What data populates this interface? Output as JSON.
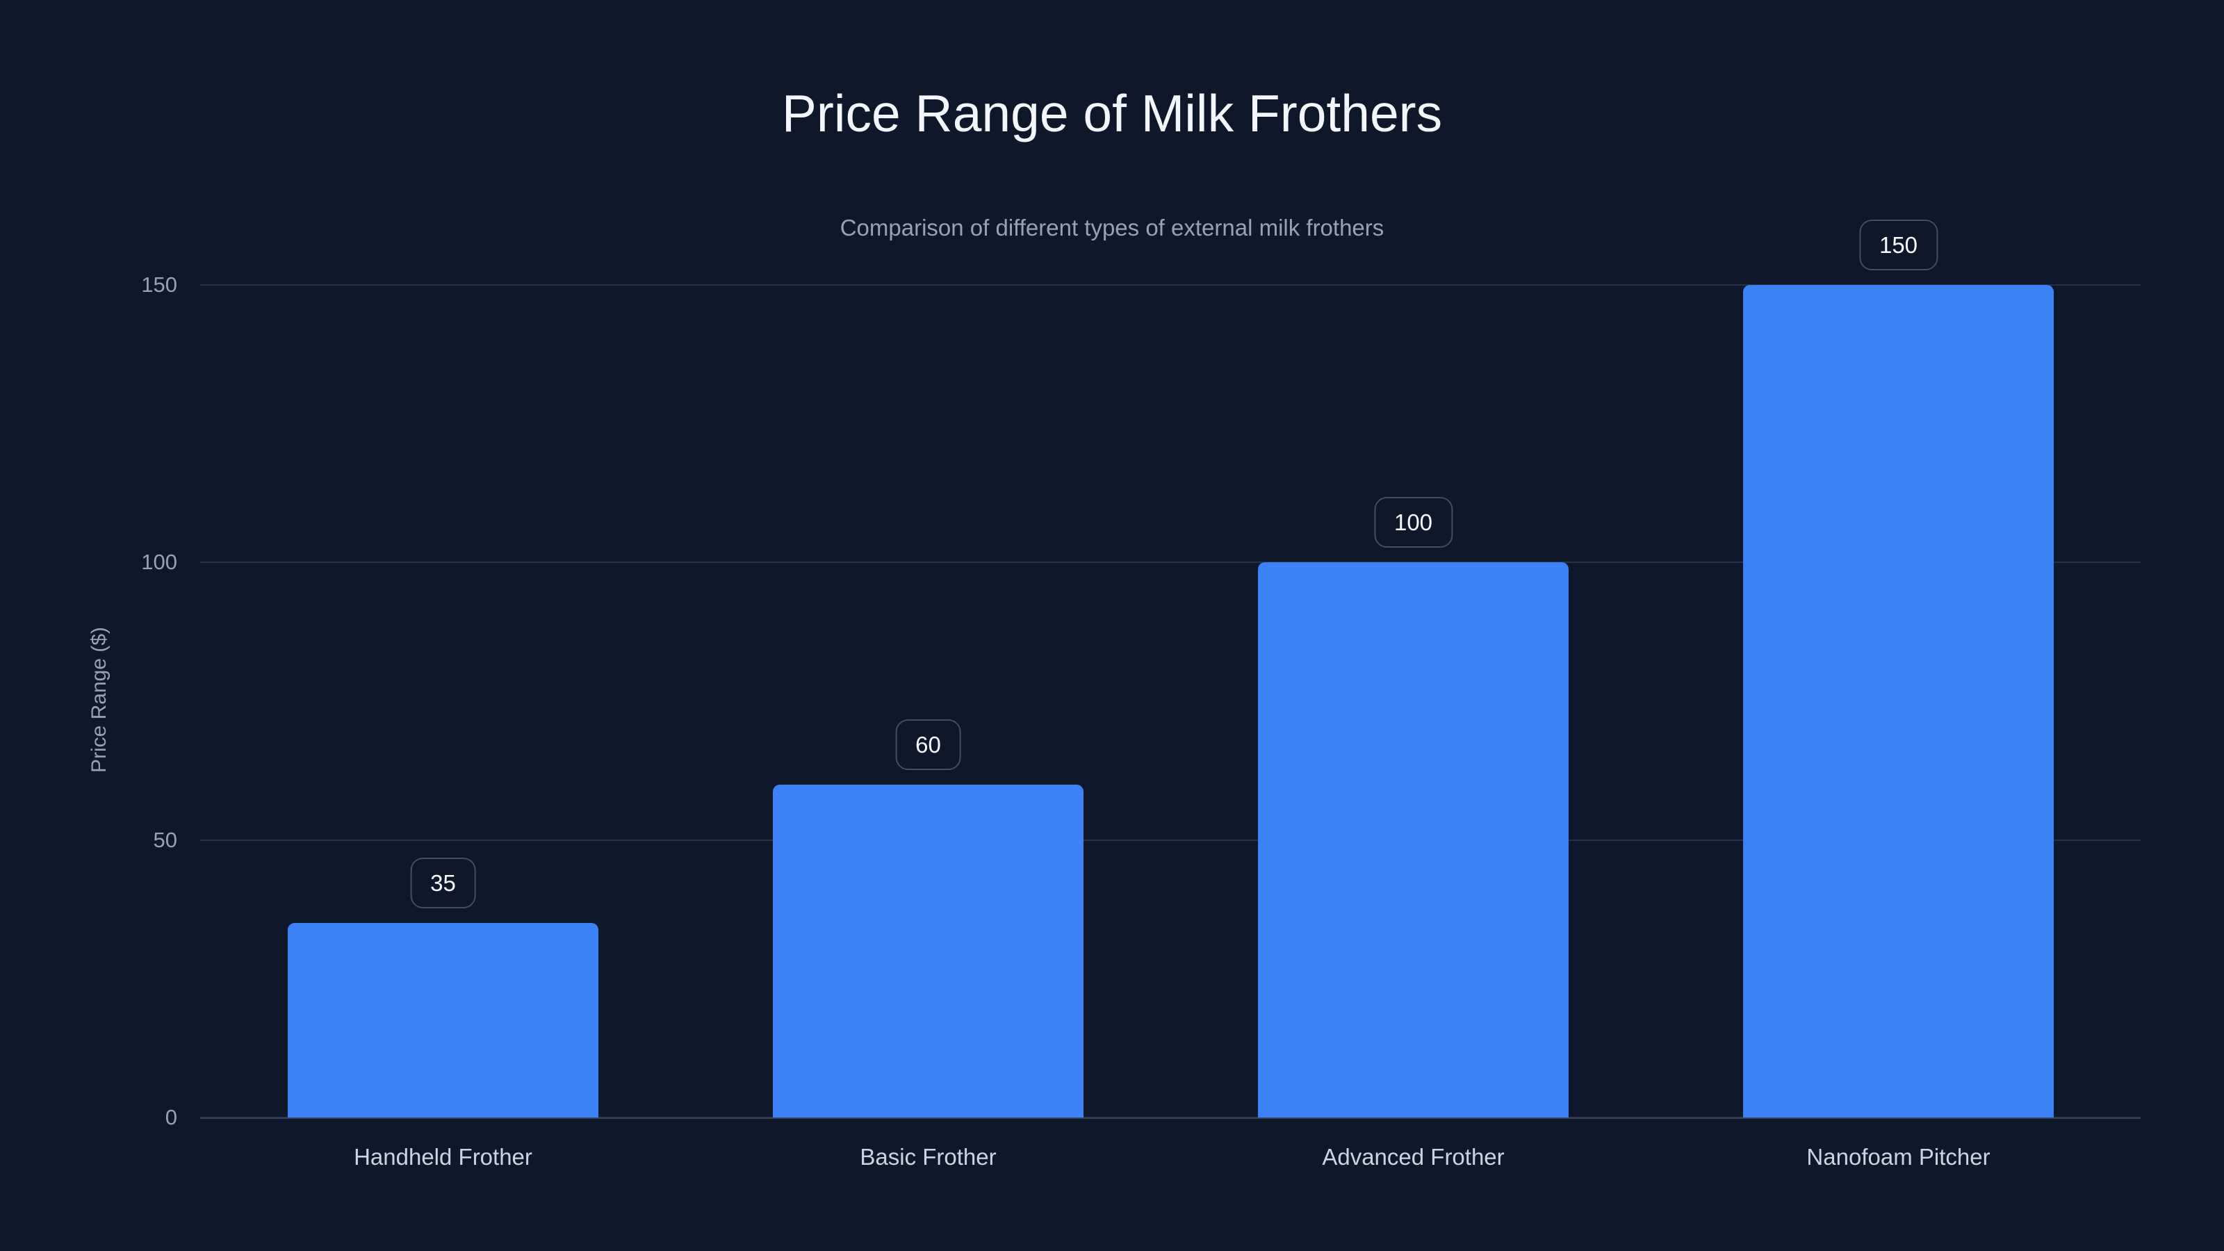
{
  "header": {
    "title": "Price Range of Milk Frothers",
    "subtitle": "Comparison of different types of external milk frothers"
  },
  "chart_data": {
    "type": "bar",
    "title": "Price Range of Milk Frothers",
    "subtitle": "Comparison of different types of external milk frothers",
    "categories": [
      "Handheld Frother",
      "Basic Frother",
      "Advanced Frother",
      "Nanofoam Pitcher"
    ],
    "values": [
      35,
      60,
      100,
      150
    ],
    "data_labels": [
      "35",
      "60",
      "100",
      "150"
    ],
    "xlabel": "",
    "ylabel": "Price Range ($)",
    "ylim": [
      0,
      150
    ],
    "yticks": [
      0,
      50,
      100,
      150
    ],
    "grid": true,
    "legend": false
  },
  "colors": {
    "background": "#0f172a",
    "bar": "#3b82f6",
    "gridline": "#283246",
    "zero_line": "#323e52",
    "title_text": "#f3f6fb",
    "muted_text": "#94a3b8",
    "category_text": "#cbd5e1",
    "badge_border": "#414e63",
    "badge_text": "#f8fafc"
  }
}
